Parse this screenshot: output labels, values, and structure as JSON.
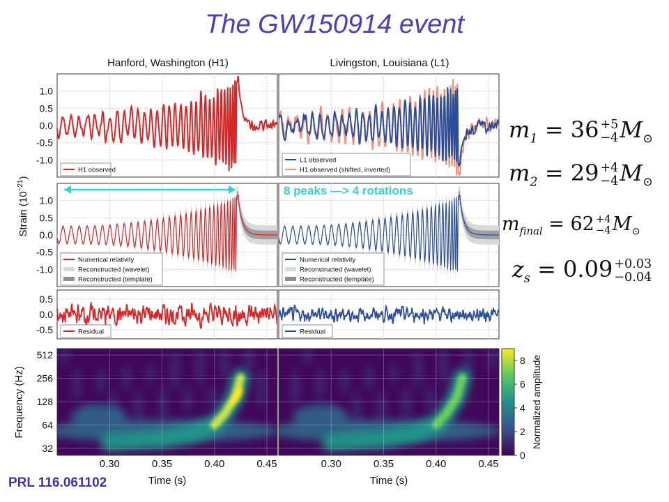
{
  "title": "The GW150914 event",
  "columns": {
    "left": "Hanford, Washington (H1)",
    "right": "Livingston, Louisiana (L1)"
  },
  "reference": "PRL 116.061102",
  "annotation": "8 peaks —> 4 rotations",
  "parameters": {
    "m1": {
      "symbol": "m",
      "sub": "1",
      "value": "36",
      "upper": "+5",
      "lower": "−4",
      "unit": "M",
      "unit_sub": "⊙"
    },
    "m2": {
      "symbol": "m",
      "sub": "2",
      "value": "29",
      "upper": "+4",
      "lower": "−4",
      "unit": "M",
      "unit_sub": "⊙"
    },
    "mfinal": {
      "symbol": "m",
      "sub": "final",
      "value": "62",
      "upper": "+4",
      "lower": "−4",
      "unit": "M",
      "unit_sub": "⊙"
    },
    "zs": {
      "symbol": "z",
      "sub": "s",
      "value": "0.09",
      "upper": "+0.03",
      "lower": "−0.04"
    }
  },
  "colors": {
    "h1": "#d62728",
    "l1": "#2a4e9b",
    "h1_shifted": "#f0907a",
    "band_wavelet": "#d9d9d9",
    "band_template": "#909090",
    "title": "#4b3fb7",
    "annotation": "#35d0d3"
  },
  "chart_data": {
    "type": "line",
    "x": {
      "label": "Time (s)",
      "range": [
        0.25,
        0.46
      ],
      "ticks": [
        0.3,
        0.35,
        0.4,
        0.45
      ],
      "tick_labels": [
        "0.30",
        "0.35",
        "0.40",
        "0.45"
      ]
    },
    "strain_label": "Strain (10",
    "strain_exp": "−21",
    "strain_close": ")",
    "panels": [
      {
        "id": "observed",
        "y_range": [
          -1.5,
          1.5
        ],
        "y_ticks": [
          1.0,
          0.5,
          0.0,
          -0.5,
          -1.0
        ],
        "y_tick_labels": [
          "1.0",
          "0.5",
          "0.0",
          "-0.5",
          "-1.0"
        ],
        "legend": {
          "h1": [
            "H1 observed"
          ],
          "l1": [
            "L1 observed",
            "H1 observed (shifted, inverted)"
          ]
        }
      },
      {
        "id": "model",
        "y_range": [
          -1.5,
          1.5
        ],
        "y_ticks": [
          1.0,
          0.5,
          0.0,
          -0.5,
          -1.0
        ],
        "y_tick_labels": [
          "1.0",
          "0.5",
          "0.0",
          "-0.5",
          "-1.0"
        ],
        "legend": {
          "h1": [
            "Numerical relativity",
            "Reconstructed (wavelet)",
            "Reconstructed (template)"
          ],
          "l1": [
            "Numerical relativity",
            "Reconstructed (wavelet)",
            "Reconstructed (template)"
          ]
        }
      },
      {
        "id": "residual",
        "y_range": [
          -0.8,
          0.8
        ],
        "y_ticks": [
          0.5,
          0.0,
          -0.5
        ],
        "y_tick_labels": [
          "0.5",
          "0.0",
          "-0.5"
        ],
        "legend": {
          "h1": [
            "Residual"
          ],
          "l1": [
            "Residual"
          ]
        }
      }
    ],
    "spectrogram": {
      "type": "heatmap",
      "ylabel": "Frequency (Hz)",
      "y_ticks": [
        512,
        256,
        128,
        64,
        32
      ],
      "y_tick_labels": [
        "512",
        "256",
        "128",
        "64",
        "32"
      ],
      "colorbar": {
        "label": "Normalized amplitude",
        "range": [
          0,
          9
        ],
        "ticks": [
          0,
          2,
          4,
          6,
          8
        ],
        "tick_labels": [
          "0",
          "2",
          "4",
          "6",
          "8"
        ],
        "colormap": [
          "#440154",
          "#3b528b",
          "#21908d",
          "#5dc962",
          "#fde725"
        ]
      },
      "track": {
        "t": [
          0.3,
          0.35,
          0.38,
          0.4,
          0.41,
          0.42,
          0.425
        ],
        "f": [
          38,
          42,
          50,
          64,
          90,
          150,
          260
        ],
        "h1_peak": 9.0,
        "l1_peak": 6.5
      }
    }
  }
}
